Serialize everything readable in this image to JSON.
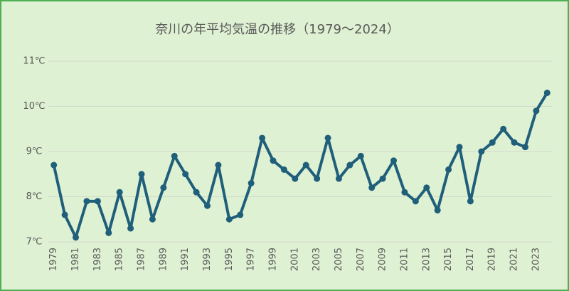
{
  "chart_data": {
    "type": "line",
    "title": "奈川の年平均気温の推移（1979～2024）",
    "categories": [
      "1979",
      null,
      "1981",
      null,
      "1983",
      null,
      "1985",
      null,
      "1987",
      null,
      "1989",
      null,
      "1991",
      null,
      "1993",
      null,
      "1995",
      null,
      "1997",
      null,
      "1999",
      null,
      "2001",
      null,
      "2003",
      null,
      "2005",
      null,
      "2007",
      null,
      "2009",
      null,
      "2011",
      null,
      "2013",
      null,
      "2015",
      null,
      "2017",
      null,
      "2019",
      null,
      "2021",
      null,
      "2023",
      null
    ],
    "values": [
      8.7,
      7.6,
      7.1,
      7.9,
      7.9,
      7.2,
      8.1,
      7.3,
      8.5,
      7.5,
      8.2,
      8.9,
      8.5,
      8.1,
      7.8,
      8.7,
      7.5,
      7.6,
      8.3,
      9.3,
      8.8,
      8.6,
      8.4,
      8.7,
      8.4,
      9.3,
      8.4,
      8.7,
      8.9,
      8.2,
      8.4,
      8.8,
      8.1,
      7.9,
      8.2,
      7.7,
      8.6,
      9.1,
      7.9,
      9.0,
      9.2,
      9.5,
      9.2,
      9.1,
      9.9,
      10.3
    ],
    "color": "#1f5f7a",
    "ylim": [
      7,
      11
    ],
    "yticks": [
      {
        "value": 7,
        "label": "7℃"
      },
      {
        "value": 8,
        "label": "8℃"
      },
      {
        "value": 9,
        "label": "9℃"
      },
      {
        "value": 10,
        "label": "10℃"
      },
      {
        "value": 11,
        "label": "11℃"
      }
    ],
    "grid": true
  }
}
